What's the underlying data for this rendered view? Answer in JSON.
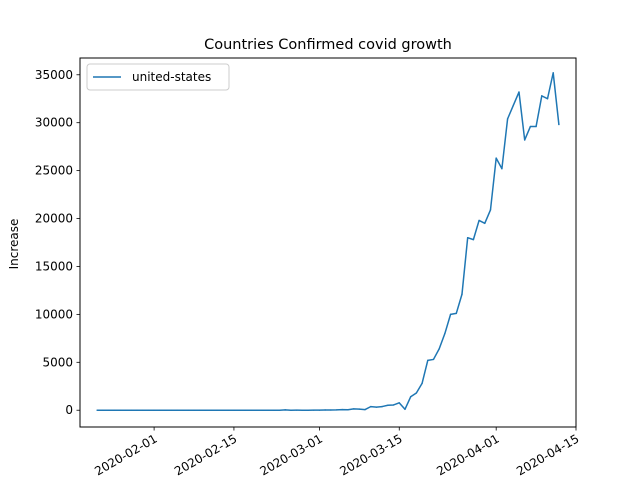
{
  "chart_data": {
    "type": "line",
    "title": "Countries Confirmed covid growth",
    "xlabel": "",
    "ylabel": "Increase",
    "x_axis_type": "date",
    "xlim": [
      "2020-01-19",
      "2020-04-15"
    ],
    "ylim": [
      -1750,
      36750
    ],
    "grid": false,
    "legend_position": "top-left",
    "x_ticks": [
      {
        "date": "2020-02-01",
        "label": "2020-02-01"
      },
      {
        "date": "2020-02-15",
        "label": "2020-02-15"
      },
      {
        "date": "2020-03-01",
        "label": "2020-03-01"
      },
      {
        "date": "2020-03-15",
        "label": "2020-03-15"
      },
      {
        "date": "2020-04-01",
        "label": "2020-04-01"
      },
      {
        "date": "2020-04-15",
        "label": "2020-04-15"
      }
    ],
    "y_ticks": [
      {
        "value": 0,
        "label": "0"
      },
      {
        "value": 5000,
        "label": "5000"
      },
      {
        "value": 10000,
        "label": "10000"
      },
      {
        "value": 15000,
        "label": "15000"
      },
      {
        "value": 20000,
        "label": "20000"
      },
      {
        "value": 25000,
        "label": "25000"
      },
      {
        "value": 30000,
        "label": "30000"
      },
      {
        "value": 35000,
        "label": "35000"
      }
    ],
    "series": [
      {
        "name": "united-states",
        "color": "#1f77b4",
        "points": [
          {
            "x": "2020-01-22",
            "y": 0
          },
          {
            "x": "2020-01-23",
            "y": 0
          },
          {
            "x": "2020-01-24",
            "y": 1
          },
          {
            "x": "2020-01-25",
            "y": 0
          },
          {
            "x": "2020-01-26",
            "y": 3
          },
          {
            "x": "2020-01-27",
            "y": 0
          },
          {
            "x": "2020-01-28",
            "y": 0
          },
          {
            "x": "2020-01-29",
            "y": 0
          },
          {
            "x": "2020-01-30",
            "y": 0
          },
          {
            "x": "2020-01-31",
            "y": 2
          },
          {
            "x": "2020-02-01",
            "y": 1
          },
          {
            "x": "2020-02-02",
            "y": 0
          },
          {
            "x": "2020-02-03",
            "y": 3
          },
          {
            "x": "2020-02-04",
            "y": 0
          },
          {
            "x": "2020-02-05",
            "y": 0
          },
          {
            "x": "2020-02-06",
            "y": 0
          },
          {
            "x": "2020-02-07",
            "y": 0
          },
          {
            "x": "2020-02-08",
            "y": 0
          },
          {
            "x": "2020-02-09",
            "y": 0
          },
          {
            "x": "2020-02-10",
            "y": 0
          },
          {
            "x": "2020-02-11",
            "y": 1
          },
          {
            "x": "2020-02-12",
            "y": 0
          },
          {
            "x": "2020-02-13",
            "y": 1
          },
          {
            "x": "2020-02-14",
            "y": 0
          },
          {
            "x": "2020-02-15",
            "y": 0
          },
          {
            "x": "2020-02-16",
            "y": 0
          },
          {
            "x": "2020-02-17",
            "y": 0
          },
          {
            "x": "2020-02-18",
            "y": 0
          },
          {
            "x": "2020-02-19",
            "y": 0
          },
          {
            "x": "2020-02-20",
            "y": 0
          },
          {
            "x": "2020-02-21",
            "y": 2
          },
          {
            "x": "2020-02-22",
            "y": 0
          },
          {
            "x": "2020-02-23",
            "y": 0
          },
          {
            "x": "2020-02-24",
            "y": 36
          },
          {
            "x": "2020-02-25",
            "y": 0
          },
          {
            "x": "2020-02-26",
            "y": 6
          },
          {
            "x": "2020-02-27",
            "y": 1
          },
          {
            "x": "2020-02-28",
            "y": 2
          },
          {
            "x": "2020-02-29",
            "y": 8
          },
          {
            "x": "2020-03-01",
            "y": 6
          },
          {
            "x": "2020-03-02",
            "y": 24
          },
          {
            "x": "2020-03-03",
            "y": 20
          },
          {
            "x": "2020-03-04",
            "y": 31
          },
          {
            "x": "2020-03-05",
            "y": 68
          },
          {
            "x": "2020-03-06",
            "y": 45
          },
          {
            "x": "2020-03-07",
            "y": 140
          },
          {
            "x": "2020-03-08",
            "y": 116
          },
          {
            "x": "2020-03-09",
            "y": 65
          },
          {
            "x": "2020-03-10",
            "y": 376
          },
          {
            "x": "2020-03-11",
            "y": 322
          },
          {
            "x": "2020-03-12",
            "y": 382
          },
          {
            "x": "2020-03-13",
            "y": 516
          },
          {
            "x": "2020-03-14",
            "y": 548
          },
          {
            "x": "2020-03-15",
            "y": 772
          },
          {
            "x": "2020-03-16",
            "y": 100
          },
          {
            "x": "2020-03-17",
            "y": 1400
          },
          {
            "x": "2020-03-18",
            "y": 1800
          },
          {
            "x": "2020-03-19",
            "y": 2800
          },
          {
            "x": "2020-03-20",
            "y": 5200
          },
          {
            "x": "2020-03-21",
            "y": 5300
          },
          {
            "x": "2020-03-22",
            "y": 6400
          },
          {
            "x": "2020-03-23",
            "y": 8000
          },
          {
            "x": "2020-03-24",
            "y": 10000
          },
          {
            "x": "2020-03-25",
            "y": 10100
          },
          {
            "x": "2020-03-26",
            "y": 12100
          },
          {
            "x": "2020-03-27",
            "y": 18000
          },
          {
            "x": "2020-03-28",
            "y": 17800
          },
          {
            "x": "2020-03-29",
            "y": 19800
          },
          {
            "x": "2020-03-30",
            "y": 19500
          },
          {
            "x": "2020-03-31",
            "y": 20900
          },
          {
            "x": "2020-04-01",
            "y": 26300
          },
          {
            "x": "2020-04-02",
            "y": 25200
          },
          {
            "x": "2020-04-03",
            "y": 30400
          },
          {
            "x": "2020-04-04",
            "y": 31800
          },
          {
            "x": "2020-04-05",
            "y": 33200
          },
          {
            "x": "2020-04-06",
            "y": 28200
          },
          {
            "x": "2020-04-07",
            "y": 29600
          },
          {
            "x": "2020-04-08",
            "y": 29600
          },
          {
            "x": "2020-04-09",
            "y": 32800
          },
          {
            "x": "2020-04-10",
            "y": 32500
          },
          {
            "x": "2020-04-11",
            "y": 35200
          },
          {
            "x": "2020-04-12",
            "y": 29800
          }
        ]
      }
    ]
  }
}
